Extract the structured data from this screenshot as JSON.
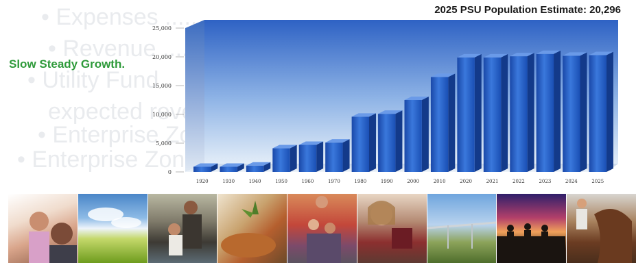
{
  "header": {
    "estimate": "2025 PSU Population Estimate: 20,296",
    "tagline": "Slow Steady Growth."
  },
  "colors": {
    "bar_front": "#1f55c0",
    "bar_light": "#3a78dc",
    "bar_top": "#6a9ae8",
    "backdrop_top": "#2e62c4",
    "backdrop_bottom": "#d8e6f5",
    "tagline": "#2e9a3a"
  },
  "photos": [
    {
      "icon": "photo-children"
    },
    {
      "icon": "photo-sky-field"
    },
    {
      "icon": "photo-father-child"
    },
    {
      "icon": "photo-seedling"
    },
    {
      "icon": "photo-family"
    },
    {
      "icon": "photo-woman-wine"
    },
    {
      "icon": "photo-irrigation"
    },
    {
      "icon": "photo-sunset-riders"
    },
    {
      "icon": "photo-girl-horse"
    }
  ],
  "chart_data": {
    "type": "bar",
    "title": "",
    "xlabel": "",
    "ylabel": "",
    "categories": [
      "1920",
      "1930",
      "1940",
      "1950",
      "1960",
      "1970",
      "1980",
      "1990",
      "2000",
      "2010",
      "2020",
      "2021",
      "2022",
      "2023",
      "2024",
      "2025"
    ],
    "values": [
      900,
      900,
      1100,
      4100,
      4700,
      5100,
      9600,
      10100,
      12500,
      16500,
      19900,
      19900,
      20100,
      20500,
      20200,
      20296
    ],
    "ylim": [
      0,
      25000
    ],
    "yticks": [
      "0",
      "5,000",
      "10,000",
      "15,000",
      "20,000",
      "25,000"
    ],
    "ytick_values": [
      0,
      5000,
      10000,
      15000,
      20000,
      25000
    ],
    "grid": false,
    "style": "3d-bars"
  }
}
